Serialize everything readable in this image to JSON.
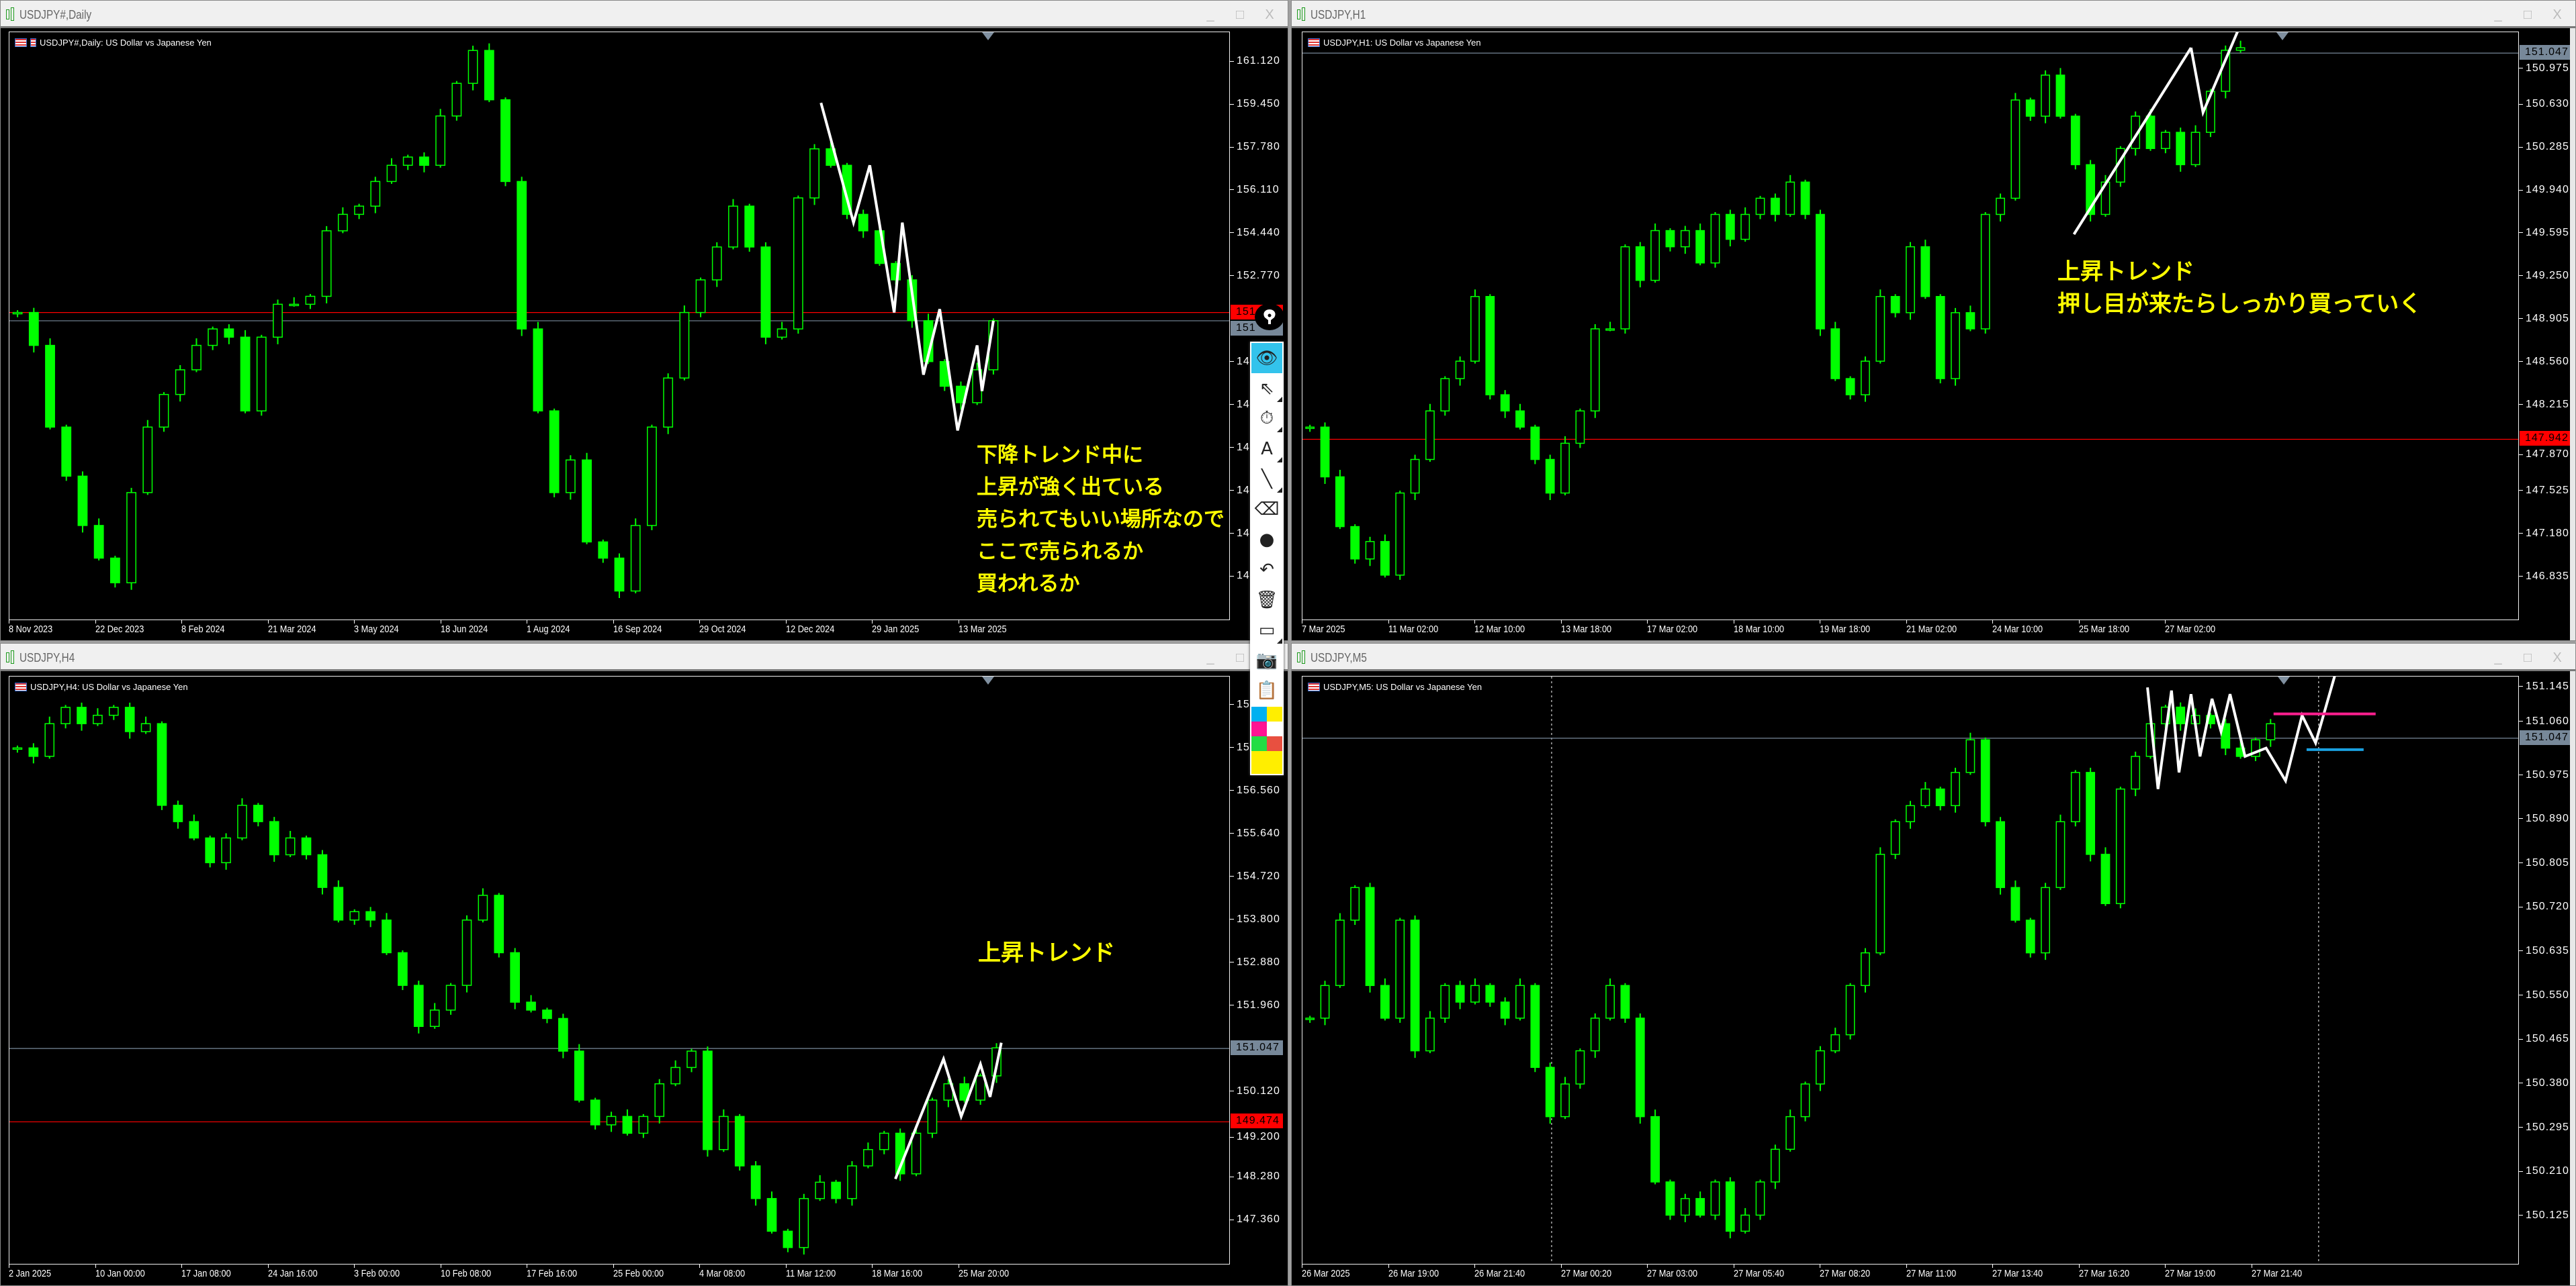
{
  "window_controls": {
    "minimize": "_",
    "maximize": "□",
    "close": "X"
  },
  "windows": [
    {
      "title": "USDJPY#,Daily",
      "label": "USDJPY#,Daily:  US Dollar vs Japanese Yen"
    },
    {
      "title": "USDJPY,H1",
      "label": "USDJPY,H1:  US Dollar vs Japanese Yen"
    },
    {
      "title": "USDJPY,H4",
      "label": "USDJPY,H4:  US Dollar vs Japanese Yen"
    },
    {
      "title": "USDJPY,M5",
      "label": "USDJPY,M5:  US Dollar vs Japanese Yen"
    }
  ],
  "annotations": {
    "daily": [
      "下降トレンド中に",
      "上昇が強く出ている",
      "売られてもいい場所なので",
      "ここで売られるか",
      "買われるか"
    ],
    "h1": [
      "上昇トレンド",
      "押し目が来たらしっかり買っていく"
    ],
    "h4": [
      "上昇トレンド"
    ]
  },
  "toolbar": {
    "items": [
      {
        "icon": "eye-icon",
        "glyph": "👁",
        "active": true
      },
      {
        "icon": "cursor-arrow-icon",
        "glyph": "⇖",
        "sub": true
      },
      {
        "icon": "stopwatch-off-icon",
        "glyph": "⏱",
        "sub": true
      },
      {
        "icon": "text-icon",
        "glyph": "A",
        "sub": true
      },
      {
        "icon": "line-icon",
        "glyph": "╲",
        "sub": true
      },
      {
        "icon": "eraser-icon",
        "glyph": "⌫"
      },
      {
        "icon": "dot-icon",
        "glyph": "●"
      },
      {
        "icon": "undo-icon",
        "glyph": "↶"
      },
      {
        "icon": "trash-icon",
        "glyph": "🗑"
      },
      {
        "icon": "easel-icon",
        "glyph": "▭",
        "sub": true
      },
      {
        "icon": "camera-icon",
        "glyph": "📷"
      },
      {
        "icon": "clipboard-icon",
        "glyph": "📋"
      }
    ],
    "colors": [
      "#00b0f0",
      "#ffee00",
      "#ff1493",
      "#ffffff",
      "#22dd44",
      "#e85040",
      "#ffee00"
    ]
  },
  "chart_data": [
    {
      "type": "candlestick",
      "title": "USDJPY#,Daily",
      "ylim": [
        139.42,
        162.28
      ],
      "xlim": [
        0,
        75
      ],
      "yticks": [
        {
          "value": 161.12,
          "label": "161.120"
        },
        {
          "value": 159.45,
          "label": "159.450"
        },
        {
          "value": 157.78,
          "label": "157.780"
        },
        {
          "value": 156.11,
          "label": "156.110"
        },
        {
          "value": 154.44,
          "label": "154.440"
        },
        {
          "value": 152.77,
          "label": "152.770"
        },
        {
          "value": 149.43,
          "label": "149"
        },
        {
          "value": 147.76,
          "label": "147"
        },
        {
          "value": 146.09,
          "label": "146"
        },
        {
          "value": 144.42,
          "label": "144"
        },
        {
          "value": 142.75,
          "label": "142"
        },
        {
          "value": 141.08,
          "label": "141"
        }
      ],
      "xticks": [
        "8 Nov 2023",
        "22 Dec 2023",
        "8 Feb 2024",
        "21 Mar 2024",
        "3 May 2024",
        "18 Jun 2024",
        "1 Aug 2024",
        "16 Sep 2024",
        "29 Oct 2024",
        "12 Dec 2024",
        "29 Jan 2025",
        "13 Mar 2025"
      ],
      "price_lines": [
        {
          "value": 151.37,
          "label": "151",
          "color": "#ff0000"
        },
        {
          "value": 151.047,
          "label": "151",
          "color": "#778899"
        }
      ],
      "closes": [
        151.37,
        150.09,
        146.91,
        145.0,
        143.08,
        141.81,
        140.85,
        144.36,
        146.91,
        148.18,
        149.14,
        150.09,
        150.73,
        150.41,
        147.54,
        150.41,
        151.69,
        151.69,
        152.0,
        154.55,
        155.19,
        155.51,
        156.47,
        157.1,
        157.42,
        157.1,
        159.02,
        160.29,
        161.57,
        159.65,
        156.47,
        150.73,
        147.54,
        144.36,
        145.63,
        142.44,
        141.81,
        140.53,
        143.08,
        146.91,
        148.82,
        151.37,
        152.64,
        153.92,
        155.51,
        153.92,
        150.41,
        150.73,
        155.83,
        157.74,
        157.1,
        155.19,
        154.55,
        153.28,
        152.64,
        151.05,
        149.46,
        148.5,
        147.86,
        149.14,
        151.05
      ],
      "drawings": [
        {
          "color": "#ffffff",
          "points": [
            [
              49.4,
              159.53
            ],
            [
              51.4,
              154.87
            ],
            [
              52.4,
              157.1
            ],
            [
              53.9,
              151.37
            ],
            [
              54.4,
              154.87
            ],
            [
              55.7,
              148.95
            ],
            [
              56.7,
              151.5
            ],
            [
              57.8,
              146.78
            ],
            [
              59.0,
              150.09
            ],
            [
              59.3,
              148.31
            ],
            [
              60.0,
              151.05
            ]
          ]
        }
      ],
      "vlines": []
    },
    {
      "type": "candlestick",
      "title": "USDJPY,H1",
      "ylim": [
        146.493,
        151.215
      ],
      "xlim": [
        0,
        81
      ],
      "yticks": [
        {
          "value": 150.975,
          "label": "150.975"
        },
        {
          "value": 150.63,
          "label": "150.630"
        },
        {
          "value": 150.285,
          "label": "150.285"
        },
        {
          "value": 149.94,
          "label": "149.940"
        },
        {
          "value": 149.595,
          "label": "149.595"
        },
        {
          "value": 149.25,
          "label": "149.250"
        },
        {
          "value": 148.905,
          "label": "148.905"
        },
        {
          "value": 148.56,
          "label": "148.560"
        },
        {
          "value": 148.215,
          "label": "148.215"
        },
        {
          "value": 147.87,
          "label": "147.870"
        },
        {
          "value": 147.525,
          "label": "147.525"
        },
        {
          "value": 147.18,
          "label": "147.180"
        },
        {
          "value": 146.835,
          "label": "146.835"
        }
      ],
      "xticks": [
        "7 Mar 2025",
        "11 Mar 02:00",
        "12 Mar 10:00",
        "13 Mar 18:00",
        "17 Mar 02:00",
        "18 Mar 10:00",
        "19 Mar 18:00",
        "21 Mar 02:00",
        "24 Mar 10:00",
        "25 Mar 18:00",
        "27 Mar 02:00"
      ],
      "price_lines": [
        {
          "value": 151.047,
          "label": "151.047",
          "color": "#778899"
        },
        {
          "value": 147.942,
          "label": "147.942",
          "color": "#ff0000"
        }
      ],
      "closes": [
        148.04,
        147.64,
        147.24,
        146.98,
        147.12,
        146.85,
        147.51,
        147.78,
        148.17,
        148.43,
        148.57,
        149.09,
        148.3,
        148.17,
        148.04,
        147.78,
        147.51,
        147.91,
        148.17,
        148.83,
        148.83,
        149.49,
        149.22,
        149.62,
        149.49,
        149.62,
        149.36,
        149.75,
        149.55,
        149.75,
        149.88,
        149.75,
        150.01,
        149.75,
        148.83,
        148.43,
        148.3,
        148.57,
        149.09,
        148.96,
        149.49,
        149.09,
        148.43,
        148.96,
        148.83,
        149.75,
        149.88,
        150.67,
        150.54,
        150.87,
        150.54,
        150.15,
        149.75,
        150.01,
        150.28,
        150.54,
        150.28,
        150.41,
        150.15,
        150.41,
        150.74,
        151.07,
        151.09
      ],
      "drawings": [
        {
          "color": "#ffffff",
          "points": [
            [
              50.9,
              149.59
            ],
            [
              58.7,
              151.09
            ]
          ]
        },
        {
          "color": "#ffffff",
          "points": [
            [
              58.7,
              151.09
            ],
            [
              59.5,
              150.57
            ],
            [
              61.8,
              151.22
            ]
          ]
        }
      ],
      "vlines": []
    },
    {
      "type": "candlestick",
      "title": "USDJPY,H4",
      "ylim": [
        146.43,
        159.02
      ],
      "xlim": [
        0,
        76
      ],
      "yticks": [
        {
          "value": 158.4,
          "label": "158"
        },
        {
          "value": 157.48,
          "label": "157"
        },
        {
          "value": 156.56,
          "label": "156.560"
        },
        {
          "value": 155.64,
          "label": "155.640"
        },
        {
          "value": 154.72,
          "label": "154.720"
        },
        {
          "value": 153.8,
          "label": "153.800"
        },
        {
          "value": 152.88,
          "label": "152.880"
        },
        {
          "value": 151.96,
          "label": "151.960"
        },
        {
          "value": 150.12,
          "label": "150.120"
        },
        {
          "value": 149.2,
          "label": "149.200"
        },
        {
          "value": 148.28,
          "label": "148.280"
        },
        {
          "value": 147.36,
          "label": "147.360"
        }
      ],
      "xticks": [
        "2 Jan 2025",
        "10 Jan 00:00",
        "17 Jan 08:00",
        "24 Jan 16:00",
        "3 Feb 00:00",
        "10 Feb 08:00",
        "17 Feb 16:00",
        "25 Feb 00:00",
        "4 Mar 08:00",
        "11 Mar 12:00",
        "18 Mar 16:00",
        "25 Mar 20:00"
      ],
      "price_lines": [
        {
          "value": 151.047,
          "label": "151.047",
          "color": "#778899"
        },
        {
          "value": 149.474,
          "label": "149.474",
          "color": "#ff0000"
        }
      ],
      "closes": [
        157.49,
        157.31,
        158.01,
        158.36,
        158.01,
        158.19,
        158.36,
        157.84,
        158.01,
        156.26,
        155.91,
        155.56,
        155.03,
        155.56,
        156.26,
        155.91,
        155.2,
        155.56,
        155.2,
        154.5,
        153.8,
        153.98,
        153.8,
        153.1,
        152.4,
        151.52,
        151.87,
        152.4,
        153.8,
        154.33,
        153.1,
        152.04,
        151.87,
        151.69,
        150.99,
        149.94,
        149.41,
        149.59,
        149.23,
        149.59,
        150.29,
        150.64,
        150.99,
        148.88,
        149.59,
        148.53,
        147.83,
        147.13,
        146.78,
        147.83,
        148.18,
        147.83,
        148.53,
        148.88,
        149.23,
        148.36,
        149.23,
        149.94,
        150.29,
        149.94,
        150.46,
        151.06
      ],
      "drawings": [
        {
          "color": "#ffffff",
          "points": [
            [
              54.7,
              148.25
            ],
            [
              57.7,
              150.82
            ],
            [
              58.8,
              149.59
            ],
            [
              60.0,
              150.71
            ],
            [
              60.6,
              150.01
            ],
            [
              61.3,
              151.17
            ]
          ]
        }
      ],
      "vlines": []
    },
    {
      "type": "candlestick",
      "title": "USDJPY,M5",
      "ylim": [
        150.033,
        151.166
      ],
      "xlim": [
        0,
        81
      ],
      "yticks": [
        {
          "value": 151.145,
          "label": "151.145"
        },
        {
          "value": 151.06,
          "label": "151.060"
        },
        {
          "value": 150.975,
          "label": "150.975"
        },
        {
          "value": 150.89,
          "label": "150.890"
        },
        {
          "value": 150.805,
          "label": "150.805"
        },
        {
          "value": 150.72,
          "label": "150.720"
        },
        {
          "value": 150.635,
          "label": "150.635"
        },
        {
          "value": 150.55,
          "label": "150.550"
        },
        {
          "value": 150.465,
          "label": "150.465"
        },
        {
          "value": 150.38,
          "label": "150.380"
        },
        {
          "value": 150.295,
          "label": "150.295"
        },
        {
          "value": 150.21,
          "label": "150.210"
        },
        {
          "value": 150.125,
          "label": "150.125"
        }
      ],
      "xticks": [
        "26 Mar 2025",
        "26 Mar 19:00",
        "26 Mar 21:40",
        "27 Mar 00:20",
        "27 Mar 03:00",
        "27 Mar 05:40",
        "27 Mar 08:20",
        "27 Mar 11:00",
        "27 Mar 13:40",
        "27 Mar 16:20",
        "27 Mar 19:00",
        "27 Mar 21:40"
      ],
      "price_lines": [
        {
          "value": 151.047,
          "label": "151.047",
          "color": "#778899"
        }
      ],
      "closes": [
        150.507,
        150.57,
        150.696,
        150.759,
        150.57,
        150.507,
        150.696,
        150.444,
        150.507,
        150.57,
        150.538,
        150.57,
        150.538,
        150.507,
        150.57,
        150.412,
        150.317,
        150.38,
        150.444,
        150.507,
        150.57,
        150.507,
        150.317,
        150.191,
        150.127,
        150.159,
        150.127,
        150.191,
        150.096,
        150.127,
        150.191,
        150.254,
        150.317,
        150.38,
        150.444,
        150.475,
        150.57,
        150.633,
        150.823,
        150.886,
        150.917,
        150.949,
        150.917,
        150.981,
        151.044,
        150.886,
        150.759,
        150.696,
        150.633,
        150.759,
        150.886,
        150.981,
        150.823,
        150.728,
        150.949,
        151.012,
        151.075,
        151.107,
        151.075,
        151.091,
        151.075,
        151.028,
        151.012,
        151.044,
        151.075
      ],
      "drawings": [
        {
          "color": "#ffffff",
          "points": [
            [
              55.8,
              151.145
            ],
            [
              56.5,
              150.949
            ],
            [
              57.4,
              151.139
            ],
            [
              57.9,
              150.981
            ],
            [
              58.7,
              151.132
            ],
            [
              59.3,
              151.012
            ],
            [
              60.1,
              151.123
            ],
            [
              60.7,
              151.06
            ],
            [
              61.3,
              151.132
            ],
            [
              62.3,
              151.012
            ],
            [
              63.7,
              151.028
            ],
            [
              65.0,
              150.965
            ],
            [
              66.1,
              151.091
            ],
            [
              67.0,
              151.038
            ],
            [
              68.3,
              151.17
            ]
          ]
        },
        {
          "color": "#ff1f8f",
          "points": [
            [
              64.2,
              151.094
            ],
            [
              71.0,
              151.094
            ]
          ]
        },
        {
          "color": "#1aa0e0",
          "points": [
            [
              66.4,
              151.025
            ],
            [
              70.2,
              151.025
            ]
          ]
        }
      ],
      "vlines": [
        16.1,
        67.2
      ]
    }
  ]
}
